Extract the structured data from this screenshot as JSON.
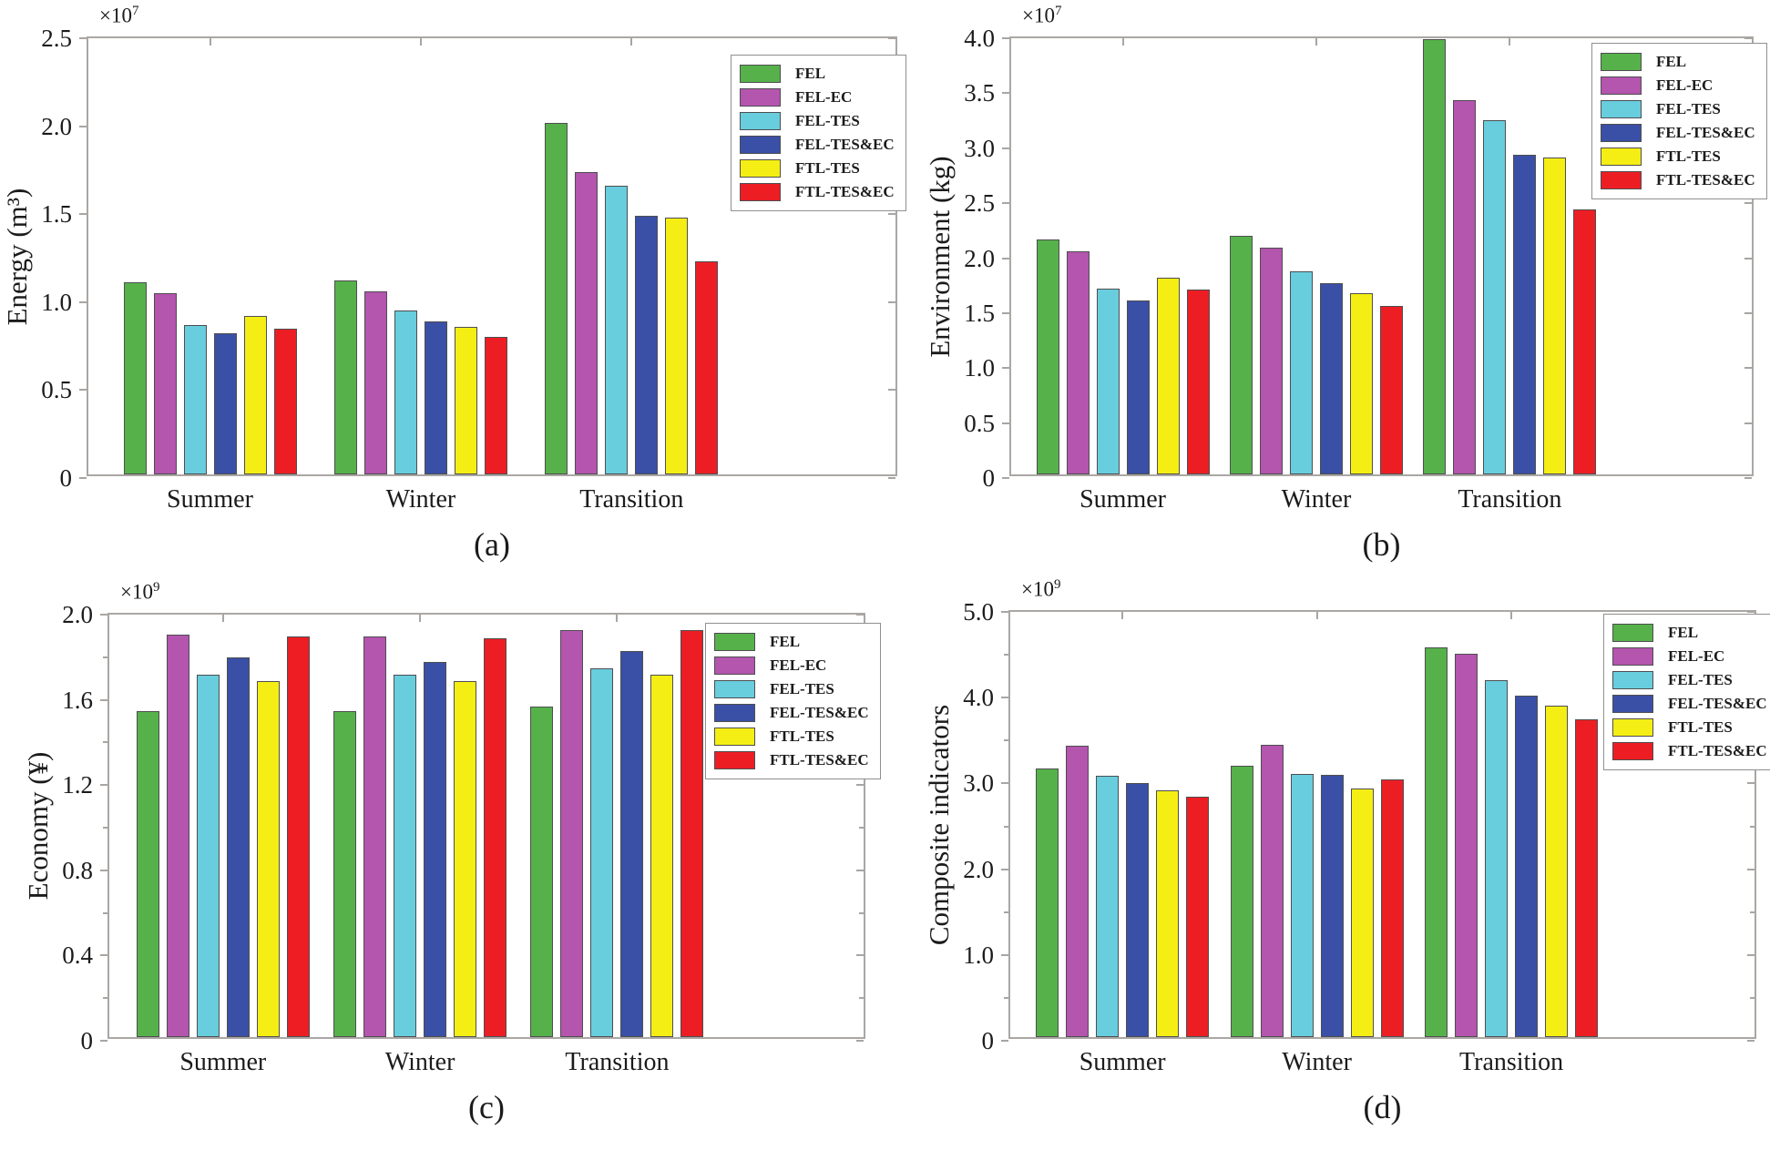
{
  "figure": {
    "background": "#ffffff",
    "axis_color": "#aaa7a4",
    "text_color": "#1b1b1b",
    "bar_edge_color": "#4e4e50",
    "categories": [
      "Summer",
      "Winter",
      "Transition"
    ],
    "legend_entries": [
      "FEL",
      "FEL-EC",
      "FEL-TES",
      "FEL-TES&EC",
      "FTL-TES",
      "FTL-TES&EC"
    ],
    "series_colors": [
      "#56b14a",
      "#b455ae",
      "#68cddd",
      "#3a50a6",
      "#f5ee14",
      "#ec1e24"
    ]
  },
  "chart_data": [
    {
      "type": "bar",
      "panel": "a",
      "caption": "(a)",
      "ylabel": "Energy (m³)",
      "scale_base": "×10",
      "scale_exp": "7",
      "ymax": 2.5,
      "ytick_step": 0.5,
      "yminor_step": null,
      "ytick_labels": [
        "0",
        "0.5",
        "1.0",
        "1.5",
        "2.0",
        "2.5"
      ],
      "categories": [
        "Summer",
        "Winter",
        "Transition"
      ],
      "legend_position": "top-right",
      "grid": false,
      "series": [
        {
          "name": "FEL",
          "color": "#56b14a",
          "values": [
            1.09,
            1.1,
            2.0
          ]
        },
        {
          "name": "FEL-EC",
          "color": "#b455ae",
          "values": [
            1.03,
            1.04,
            1.72
          ]
        },
        {
          "name": "FEL-TES",
          "color": "#68cddd",
          "values": [
            0.85,
            0.93,
            1.64
          ]
        },
        {
          "name": "FEL-TES&EC",
          "color": "#3a50a6",
          "values": [
            0.8,
            0.87,
            1.47
          ]
        },
        {
          "name": "FTL-TES",
          "color": "#f5ee14",
          "values": [
            0.9,
            0.84,
            1.46
          ]
        },
        {
          "name": "FTL-TES&EC",
          "color": "#ec1e24",
          "values": [
            0.83,
            0.78,
            1.21
          ]
        }
      ]
    },
    {
      "type": "bar",
      "panel": "b",
      "caption": "(b)",
      "ylabel": "Environment (kg)",
      "scale_base": "×10",
      "scale_exp": "7",
      "ymax": 4.0,
      "ytick_step": 0.5,
      "yminor_step": null,
      "ytick_labels": [
        "0",
        "0.5",
        "1.0",
        "1.5",
        "2.0",
        "2.5",
        "3.0",
        "3.5",
        "4.0"
      ],
      "categories": [
        "Summer",
        "Winter",
        "Transition"
      ],
      "legend_position": "top-right",
      "grid": false,
      "series": [
        {
          "name": "FEL",
          "color": "#56b14a",
          "values": [
            2.14,
            2.17,
            3.96
          ]
        },
        {
          "name": "FEL-EC",
          "color": "#b455ae",
          "values": [
            2.03,
            2.06,
            3.4
          ]
        },
        {
          "name": "FEL-TES",
          "color": "#68cddd",
          "values": [
            1.69,
            1.85,
            3.22
          ]
        },
        {
          "name": "FEL-TES&EC",
          "color": "#3a50a6",
          "values": [
            1.58,
            1.74,
            2.91
          ]
        },
        {
          "name": "FTL-TES",
          "color": "#f5ee14",
          "values": [
            1.79,
            1.65,
            2.88
          ]
        },
        {
          "name": "FTL-TES&EC",
          "color": "#ec1e24",
          "values": [
            1.68,
            1.53,
            2.41
          ]
        }
      ]
    },
    {
      "type": "bar",
      "panel": "c",
      "caption": "(c)",
      "ylabel": "Economy (¥)",
      "scale_base": "×10",
      "scale_exp": "9",
      "ymax": 2.0,
      "ytick_step": 0.4,
      "yminor_step": 0.2,
      "ytick_labels": [
        "0",
        "0.4",
        "0.8",
        "1.2",
        "1.6",
        "2.0"
      ],
      "categories": [
        "Summer",
        "Winter",
        "Transition"
      ],
      "legend_position": "top-right",
      "grid": false,
      "series": [
        {
          "name": "FEL",
          "color": "#56b14a",
          "values": [
            1.53,
            1.53,
            1.55
          ]
        },
        {
          "name": "FEL-EC",
          "color": "#b455ae",
          "values": [
            1.89,
            1.88,
            1.91
          ]
        },
        {
          "name": "FEL-TES",
          "color": "#68cddd",
          "values": [
            1.7,
            1.7,
            1.73
          ]
        },
        {
          "name": "FEL-TES&EC",
          "color": "#3a50a6",
          "values": [
            1.78,
            1.76,
            1.81
          ]
        },
        {
          "name": "FTL-TES",
          "color": "#f5ee14",
          "values": [
            1.67,
            1.67,
            1.7
          ]
        },
        {
          "name": "FTL-TES&EC",
          "color": "#ec1e24",
          "values": [
            1.88,
            1.87,
            1.91
          ]
        }
      ]
    },
    {
      "type": "bar",
      "panel": "d",
      "caption": "(d)",
      "ylabel": "Composite indicators",
      "scale_base": "×10",
      "scale_exp": "9",
      "ymax": 5.0,
      "ytick_step": 1.0,
      "yminor_step": 0.5,
      "ytick_labels": [
        "0",
        "1.0",
        "2.0",
        "3.0",
        "4.0",
        "5.0"
      ],
      "categories": [
        "Summer",
        "Winter",
        "Transition"
      ],
      "legend_position": "top-right",
      "grid": false,
      "series": [
        {
          "name": "FEL",
          "color": "#56b14a",
          "values": [
            3.13,
            3.16,
            4.54
          ]
        },
        {
          "name": "FEL-EC",
          "color": "#b455ae",
          "values": [
            3.4,
            3.41,
            4.47
          ]
        },
        {
          "name": "FEL-TES",
          "color": "#68cddd",
          "values": [
            3.05,
            3.07,
            4.16
          ]
        },
        {
          "name": "FEL-TES&EC",
          "color": "#3a50a6",
          "values": [
            2.96,
            3.06,
            3.98
          ]
        },
        {
          "name": "FTL-TES",
          "color": "#f5ee14",
          "values": [
            2.88,
            2.9,
            3.86
          ]
        },
        {
          "name": "FTL-TES&EC",
          "color": "#ec1e24",
          "values": [
            2.8,
            3.0,
            3.7
          ]
        }
      ]
    }
  ]
}
